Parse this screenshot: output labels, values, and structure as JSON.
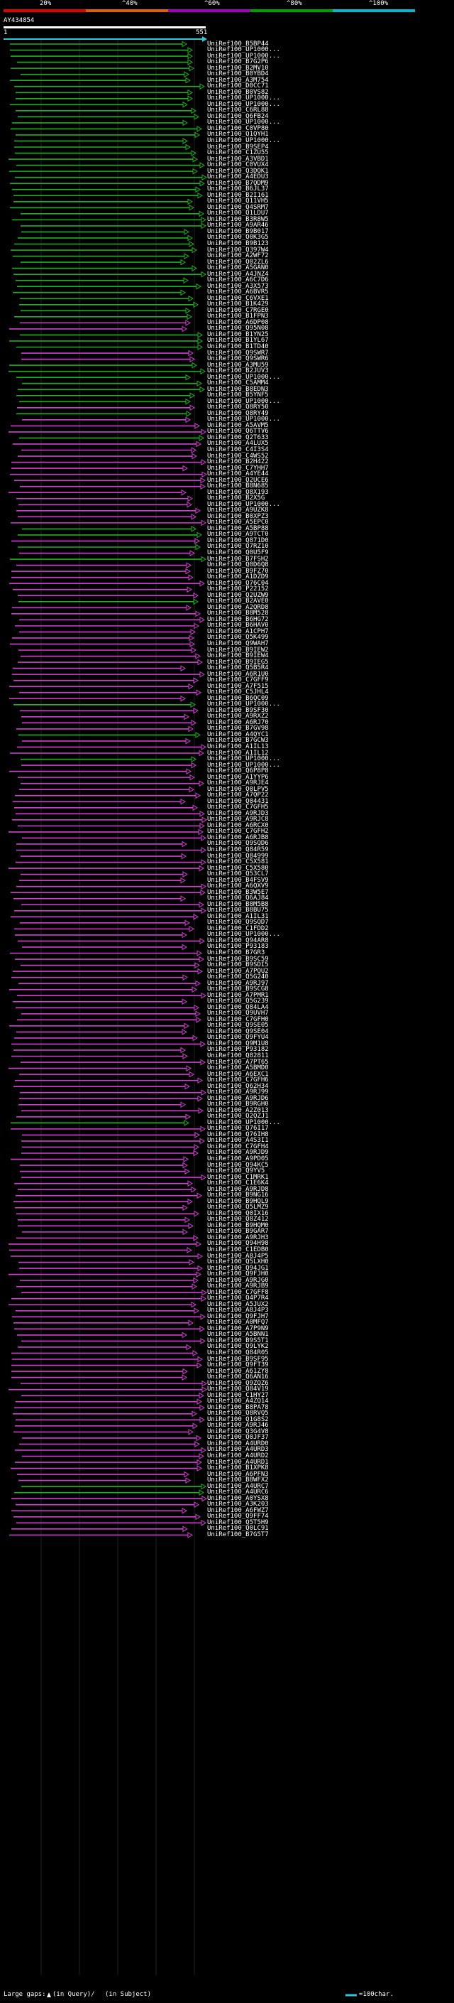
{
  "scale": {
    "labels": [
      "20%",
      "^40%",
      "^60%",
      "^80%",
      "^100%"
    ],
    "segment_colors": [
      "#e00000",
      "#e06000",
      "#a000c0",
      "#00a000",
      "#00b8d0"
    ]
  },
  "query": {
    "name": "AY434854",
    "start": "1",
    "end": "551"
  },
  "colors": {
    "green": "#20b020",
    "magenta": "#d040d0",
    "ruler": "#30c8d8"
  },
  "footer": {
    "large_gaps_label": "Large gaps:",
    "in_query_text": "(in Query)/",
    "in_subject_text": "(in Subject)",
    "legend_text": "=100char."
  },
  "hits": [
    {
      "id": "UniRef100_B5BP44",
      "color": "green"
    },
    {
      "id": "UniRef100_UP1000...",
      "color": "green"
    },
    {
      "id": "UniRef100_UP1000...",
      "color": "green"
    },
    {
      "id": "UniRef100_B7G2P6",
      "color": "green"
    },
    {
      "id": "UniRef100_B2MV10",
      "color": "green"
    },
    {
      "id": "UniRef100_B0YBD4",
      "color": "green"
    },
    {
      "id": "UniRef100_A3M754",
      "color": "green"
    },
    {
      "id": "UniRef100_D0CC71",
      "color": "green"
    },
    {
      "id": "UniRef100_B0VS82",
      "color": "green"
    },
    {
      "id": "UniRef100_UP1000...",
      "color": "green"
    },
    {
      "id": "UniRef100_UP1000...",
      "color": "green"
    },
    {
      "id": "UniRef100_C6RL88",
      "color": "green"
    },
    {
      "id": "UniRef100_Q6FB24",
      "color": "green"
    },
    {
      "id": "UniRef100_UP1000...",
      "color": "green"
    },
    {
      "id": "UniRef100_C0VP80",
      "color": "green"
    },
    {
      "id": "UniRef100_Q1QYH1",
      "color": "green"
    },
    {
      "id": "UniRef100_UP1000...",
      "color": "green"
    },
    {
      "id": "UniRef100_B9SEP4",
      "color": "green"
    },
    {
      "id": "UniRef100_C1ZU55",
      "color": "green"
    },
    {
      "id": "UniRef100_A3VBD1",
      "color": "green"
    },
    {
      "id": "UniRef100_C0VUX4",
      "color": "green"
    },
    {
      "id": "UniRef100_Q3DQK1",
      "color": "green"
    },
    {
      "id": "UniRef100_A4EDU3",
      "color": "green"
    },
    {
      "id": "UniRef100_B7QDM9",
      "color": "green"
    },
    {
      "id": "UniRef100_B6JL37",
      "color": "green"
    },
    {
      "id": "UniRef100_B2I161",
      "color": "green"
    },
    {
      "id": "UniRef100_Q11VH5",
      "color": "green"
    },
    {
      "id": "UniRef100_Q4SRM7",
      "color": "green"
    },
    {
      "id": "UniRef100_Q1LDU7",
      "color": "green"
    },
    {
      "id": "UniRef100_B3R8W5",
      "color": "green"
    },
    {
      "id": "UniRef100_A9AR46",
      "color": "green"
    },
    {
      "id": "UniRef100_B9B017",
      "color": "green"
    },
    {
      "id": "UniRef100_Q0K3G5",
      "color": "green"
    },
    {
      "id": "UniRef100_B9B123",
      "color": "green"
    },
    {
      "id": "UniRef100_Q397W4",
      "color": "green"
    },
    {
      "id": "UniRef100_A2WF72",
      "color": "green"
    },
    {
      "id": "UniRef100_Q02ZL6",
      "color": "green"
    },
    {
      "id": "UniRef100_A5GAN0",
      "color": "green"
    },
    {
      "id": "UniRef100_A4JNZ4",
      "color": "green"
    },
    {
      "id": "UniRef100_A6C7D6",
      "color": "green"
    },
    {
      "id": "UniRef100_A3X573",
      "color": "green"
    },
    {
      "id": "UniRef100_A6BVR5",
      "color": "green"
    },
    {
      "id": "UniRef100_C6VXE1",
      "color": "green"
    },
    {
      "id": "UniRef100_B1K429",
      "color": "green"
    },
    {
      "id": "UniRef100_C7RGE0",
      "color": "green"
    },
    {
      "id": "UniRef100_B1FPN3",
      "color": "green"
    },
    {
      "id": "UniRef100_A6DP08",
      "color": "magenta"
    },
    {
      "id": "UniRef100_Q95N08",
      "color": "magenta"
    },
    {
      "id": "UniRef100_B1YN25",
      "color": "green"
    },
    {
      "id": "UniRef100_B1YL67",
      "color": "green"
    },
    {
      "id": "UniRef100_B1TD40",
      "color": "green"
    },
    {
      "id": "UniRef100_Q9SWR7",
      "color": "magenta"
    },
    {
      "id": "UniRef100_Q9SWR6",
      "color": "magenta"
    },
    {
      "id": "UniRef100_A3MU59",
      "color": "green"
    },
    {
      "id": "UniRef100_B2JUV3",
      "color": "green"
    },
    {
      "id": "UniRef100_UP1000...",
      "color": "green"
    },
    {
      "id": "UniRef100_C5AMM4",
      "color": "green"
    },
    {
      "id": "UniRef100_B8EDN3",
      "color": "green"
    },
    {
      "id": "UniRef100_B5YNF5",
      "color": "green"
    },
    {
      "id": "UniRef100_UP1000...",
      "color": "green"
    },
    {
      "id": "UniRef100_Q8RY50",
      "color": "magenta"
    },
    {
      "id": "UniRef100_Q8RY49",
      "color": "green"
    },
    {
      "id": "UniRef100_UP1000...",
      "color": "magenta"
    },
    {
      "id": "UniRef100_A5AVM5",
      "color": "magenta"
    },
    {
      "id": "UniRef100_Q6TTV6",
      "color": "magenta"
    },
    {
      "id": "UniRef100_Q2T633",
      "color": "green"
    },
    {
      "id": "UniRef100_A4LUX5",
      "color": "magenta"
    },
    {
      "id": "UniRef100_C4I3S4",
      "color": "magenta"
    },
    {
      "id": "UniRef100_C4WS52",
      "color": "magenta"
    },
    {
      "id": "UniRef100_B2H422",
      "color": "magenta"
    },
    {
      "id": "UniRef100_C7YHH7",
      "color": "magenta"
    },
    {
      "id": "UniRef100_A4YE44",
      "color": "magenta"
    },
    {
      "id": "UniRef100_Q2UCE6",
      "color": "magenta"
    },
    {
      "id": "UniRef100_B8N685",
      "color": "magenta"
    },
    {
      "id": "UniRef100_Q8X193",
      "color": "magenta"
    },
    {
      "id": "UniRef100_B2X5G",
      "color": "magenta"
    },
    {
      "id": "UniRef100_UP1000...",
      "color": "magenta"
    },
    {
      "id": "UniRef100_A9UZK8",
      "color": "magenta"
    },
    {
      "id": "UniRef100_B0XPZ3",
      "color": "magenta"
    },
    {
      "id": "UniRef100_A5EPC0",
      "color": "magenta"
    },
    {
      "id": "UniRef100_A5BP88",
      "color": "green"
    },
    {
      "id": "UniRef100_A9TCT0",
      "color": "green"
    },
    {
      "id": "UniRef100_Q871D0",
      "color": "magenta"
    },
    {
      "id": "UniRef100_Q7RZ10",
      "color": "green"
    },
    {
      "id": "UniRef100_Q0U5F9",
      "color": "magenta"
    },
    {
      "id": "UniRef100_B7FSH2",
      "color": "green"
    },
    {
      "id": "UniRef100_Q0D6Q8",
      "color": "magenta"
    },
    {
      "id": "UniRef100_B9FZ70",
      "color": "magenta"
    },
    {
      "id": "UniRef100_A1DZD9",
      "color": "magenta"
    },
    {
      "id": "UniRef100_Q76C04",
      "color": "magenta"
    },
    {
      "id": "UniRef100_P22152",
      "color": "magenta"
    },
    {
      "id": "UniRef100_Q2UZW9",
      "color": "magenta"
    },
    {
      "id": "UniRef100_B2AVE0",
      "color": "green"
    },
    {
      "id": "UniRef100_A2QRD8",
      "color": "magenta"
    },
    {
      "id": "UniRef100_B8M528",
      "color": "magenta"
    },
    {
      "id": "UniRef100_B6HG72",
      "color": "magenta"
    },
    {
      "id": "UniRef100_B6HAV0",
      "color": "magenta"
    },
    {
      "id": "UniRef100_A1CPH7",
      "color": "magenta"
    },
    {
      "id": "UniRef100_Q5K499",
      "color": "magenta"
    },
    {
      "id": "UniRef100_Q9WAH7",
      "color": "magenta"
    },
    {
      "id": "UniRef100_B9IEW2",
      "color": "magenta"
    },
    {
      "id": "UniRef100_B9IEW4",
      "color": "magenta"
    },
    {
      "id": "UniRef100_B9IEG5",
      "color": "magenta"
    },
    {
      "id": "UniRef100_Q5B5R4",
      "color": "magenta"
    },
    {
      "id": "UniRef100_A6R1U0",
      "color": "magenta"
    },
    {
      "id": "UniRef100_C7GFF9",
      "color": "magenta"
    },
    {
      "id": "UniRef100_A7F515",
      "color": "magenta"
    },
    {
      "id": "UniRef100_C5JHL4",
      "color": "magenta"
    },
    {
      "id": "UniRef100_B6QC09",
      "color": "magenta"
    },
    {
      "id": "UniRef100_UP1000...",
      "color": "green"
    },
    {
      "id": "UniRef100_B9SF30",
      "color": "magenta"
    },
    {
      "id": "UniRef100_A9RXZ2",
      "color": "magenta"
    },
    {
      "id": "UniRef100_A6RJ70",
      "color": "magenta"
    },
    {
      "id": "UniRef100_B7GV98",
      "color": "magenta"
    },
    {
      "id": "UniRef100_A4QYC1",
      "color": "green"
    },
    {
      "id": "UniRef100_B7GCW3",
      "color": "magenta"
    },
    {
      "id": "UniRef100_A1IL13",
      "color": "magenta"
    },
    {
      "id": "UniRef100_A1IL12",
      "color": "magenta"
    },
    {
      "id": "UniRef100_UP1000...",
      "color": "green"
    },
    {
      "id": "UniRef100_UP1000...",
      "color": "magenta"
    },
    {
      "id": "UniRef100_Q6P8P8",
      "color": "magenta"
    },
    {
      "id": "UniRef100_A1YYP6",
      "color": "magenta"
    },
    {
      "id": "UniRef100_A9RJE4",
      "color": "magenta"
    },
    {
      "id": "UniRef100_Q0LPV5",
      "color": "magenta"
    },
    {
      "id": "UniRef100_A7QP22",
      "color": "magenta"
    },
    {
      "id": "UniRef100_Q04431",
      "color": "magenta"
    },
    {
      "id": "UniRef100_C7GFH5",
      "color": "magenta"
    },
    {
      "id": "UniRef100_A9RJD3",
      "color": "magenta"
    },
    {
      "id": "UniRef100_A9RJC8",
      "color": "magenta"
    },
    {
      "id": "UniRef100_A6RCX0",
      "color": "magenta"
    },
    {
      "id": "UniRef100_C7GFH2",
      "color": "magenta"
    },
    {
      "id": "UniRef100_A6RJB8",
      "color": "magenta"
    },
    {
      "id": "UniRef100_Q9SQD6",
      "color": "magenta"
    },
    {
      "id": "UniRef100_Q84R59",
      "color": "magenta"
    },
    {
      "id": "UniRef100_Q84999",
      "color": "magenta"
    },
    {
      "id": "UniRef100_C5X581",
      "color": "magenta"
    },
    {
      "id": "UniRef100_C5X580",
      "color": "magenta"
    },
    {
      "id": "UniRef100_Q53CL7",
      "color": "magenta"
    },
    {
      "id": "UniRef100_B4FSV9",
      "color": "magenta"
    },
    {
      "id": "UniRef100_A6QXV9",
      "color": "magenta"
    },
    {
      "id": "UniRef100_B3W5E7",
      "color": "magenta"
    },
    {
      "id": "UniRef100_Q6AJ84",
      "color": "magenta"
    },
    {
      "id": "UniRef100_B8M5B8",
      "color": "magenta"
    },
    {
      "id": "UniRef100_B8BU75",
      "color": "magenta"
    },
    {
      "id": "UniRef100_A1IL31",
      "color": "magenta"
    },
    {
      "id": "UniRef100_Q9SQD7",
      "color": "magenta"
    },
    {
      "id": "UniRef100_C1FDD2",
      "color": "magenta"
    },
    {
      "id": "UniRef100_UP1000...",
      "color": "magenta"
    },
    {
      "id": "UniRef100_Q94AR8",
      "color": "magenta"
    },
    {
      "id": "UniRef100_P93183",
      "color": "magenta"
    },
    {
      "id": "UniRef100_B7GR3",
      "color": "magenta"
    },
    {
      "id": "UniRef100_B9SC59",
      "color": "magenta"
    },
    {
      "id": "UniRef100_B9SDI5",
      "color": "magenta"
    },
    {
      "id": "UniRef100_A7PQU2",
      "color": "magenta"
    },
    {
      "id": "UniRef100_Q5G240",
      "color": "magenta"
    },
    {
      "id": "UniRef100_A9RJ97",
      "color": "magenta"
    },
    {
      "id": "UniRef100_B9SCG8",
      "color": "magenta"
    },
    {
      "id": "UniRef100_A7PMR1",
      "color": "magenta"
    },
    {
      "id": "UniRef100_Q5G239",
      "color": "magenta"
    },
    {
      "id": "UniRef100_Q84LA4",
      "color": "magenta"
    },
    {
      "id": "UniRef100_Q9UVH7",
      "color": "magenta"
    },
    {
      "id": "UniRef100_C7GFH0",
      "color": "magenta"
    },
    {
      "id": "UniRef100_Q9SE05",
      "color": "magenta"
    },
    {
      "id": "UniRef100_Q9SE04",
      "color": "magenta"
    },
    {
      "id": "UniRef100_Q9FYU4",
      "color": "magenta"
    },
    {
      "id": "UniRef100_Q9M1U8",
      "color": "magenta"
    },
    {
      "id": "UniRef100_P93182",
      "color": "magenta"
    },
    {
      "id": "UniRef100_Q82811",
      "color": "magenta"
    },
    {
      "id": "UniRef100_A7PT65",
      "color": "magenta"
    },
    {
      "id": "UniRef100_A5BMD0",
      "color": "magenta"
    },
    {
      "id": "UniRef100_A6EXC1",
      "color": "magenta"
    },
    {
      "id": "UniRef100_C7GFH6",
      "color": "magenta"
    },
    {
      "id": "UniRef100_Q62H34",
      "color": "magenta"
    },
    {
      "id": "UniRef100_A9RJ99",
      "color": "magenta"
    },
    {
      "id": "UniRef100_A9RJD6",
      "color": "magenta"
    },
    {
      "id": "UniRef100_B9RGH0",
      "color": "magenta"
    },
    {
      "id": "UniRef100_A2Z013",
      "color": "magenta"
    },
    {
      "id": "UniRef100_Q2QZJ1",
      "color": "magenta"
    },
    {
      "id": "UniRef100_UP1000...",
      "color": "green"
    },
    {
      "id": "UniRef100_Q76I17",
      "color": "magenta"
    },
    {
      "id": "UniRef100_Q76IH8",
      "color": "magenta"
    },
    {
      "id": "UniRef100_A4S3I1",
      "color": "magenta"
    },
    {
      "id": "UniRef100_C7GFH4",
      "color": "magenta"
    },
    {
      "id": "UniRef100_A9RJD9",
      "color": "magenta"
    },
    {
      "id": "UniRef100_A9PD05",
      "color": "magenta"
    },
    {
      "id": "UniRef100_Q94KC5",
      "color": "magenta"
    },
    {
      "id": "UniRef100_Q9YV5",
      "color": "magenta"
    },
    {
      "id": "UniRef100_C1MRK1",
      "color": "magenta"
    },
    {
      "id": "UniRef100_C1E6K4",
      "color": "magenta"
    },
    {
      "id": "UniRef100_A9RJD8",
      "color": "magenta"
    },
    {
      "id": "UniRef100_B9NG16",
      "color": "magenta"
    },
    {
      "id": "UniRef100_B9HQL9",
      "color": "magenta"
    },
    {
      "id": "UniRef100_Q5LMZ9",
      "color": "magenta"
    },
    {
      "id": "UniRef100_Q0IX16",
      "color": "magenta"
    },
    {
      "id": "UniRef100_Q8Z412",
      "color": "magenta"
    },
    {
      "id": "UniRef100_B9HQM0",
      "color": "magenta"
    },
    {
      "id": "UniRef100_B9GAR7",
      "color": "magenta"
    },
    {
      "id": "UniRef100_A9RJH3",
      "color": "magenta"
    },
    {
      "id": "UniRef100_Q94H98",
      "color": "magenta"
    },
    {
      "id": "UniRef100_C1EDB0",
      "color": "magenta"
    },
    {
      "id": "UniRef100_A8J4P5",
      "color": "magenta"
    },
    {
      "id": "UniRef100_Q5LXH0",
      "color": "magenta"
    },
    {
      "id": "UniRef100_Q94JG1",
      "color": "magenta"
    },
    {
      "id": "UniRef100_Q9FJH0",
      "color": "magenta"
    },
    {
      "id": "UniRef100_A9RJG0",
      "color": "magenta"
    },
    {
      "id": "UniRef100_A9RJB9",
      "color": "magenta"
    },
    {
      "id": "UniRef100_C7GFF8",
      "color": "magenta"
    },
    {
      "id": "UniRef100_Q4P7R4",
      "color": "magenta"
    },
    {
      "id": "UniRef100_A5JUX2",
      "color": "magenta"
    },
    {
      "id": "UniRef100_A8J4P3",
      "color": "magenta"
    },
    {
      "id": "UniRef100_Q9FJH7",
      "color": "magenta"
    },
    {
      "id": "UniRef100_A0MFQ7",
      "color": "magenta"
    },
    {
      "id": "UniRef100_A7P9N9",
      "color": "magenta"
    },
    {
      "id": "UniRef100_A5BNN1",
      "color": "magenta"
    },
    {
      "id": "UniRef100_B9S5T1",
      "color": "magenta"
    },
    {
      "id": "UniRef100_Q9LYK2",
      "color": "magenta"
    },
    {
      "id": "UniRef100_Q84R05",
      "color": "magenta"
    },
    {
      "id": "UniRef100_B9SF95",
      "color": "magenta"
    },
    {
      "id": "UniRef100_Q9FT39",
      "color": "magenta"
    },
    {
      "id": "UniRef100_A61ZY8",
      "color": "magenta"
    },
    {
      "id": "UniRef100_Q6AN16",
      "color": "magenta"
    },
    {
      "id": "UniRef100_Q9ZQZ6",
      "color": "magenta"
    },
    {
      "id": "UniRef100_Q84V19",
      "color": "magenta"
    },
    {
      "id": "UniRef100_C1HY27",
      "color": "magenta"
    },
    {
      "id": "UniRef100_A4ZQ14",
      "color": "magenta"
    },
    {
      "id": "UniRef100_B8PA78",
      "color": "magenta"
    },
    {
      "id": "UniRef100_Q8RVQ5",
      "color": "magenta"
    },
    {
      "id": "UniRef100_Q1G8S2",
      "color": "magenta"
    },
    {
      "id": "UniRef100_A9RJ46",
      "color": "magenta"
    },
    {
      "id": "UniRef100_Q3G4V8",
      "color": "magenta"
    },
    {
      "id": "UniRef100_Q0JF37",
      "color": "magenta"
    },
    {
      "id": "UniRef100_A4URD0",
      "color": "magenta"
    },
    {
      "id": "UniRef100_A4URD3",
      "color": "magenta"
    },
    {
      "id": "UniRef100_A4URD2",
      "color": "magenta"
    },
    {
      "id": "UniRef100_A4URD1",
      "color": "magenta"
    },
    {
      "id": "UniRef100_B1XPK8",
      "color": "magenta"
    },
    {
      "id": "UniRef100_A6PFN3",
      "color": "magenta"
    },
    {
      "id": "UniRef100_B8WFX2",
      "color": "magenta"
    },
    {
      "id": "UniRef100_A4URC7",
      "color": "green"
    },
    {
      "id": "UniRef100_A4URC6",
      "color": "green"
    },
    {
      "id": "UniRef100_A0YSX8",
      "color": "magenta"
    },
    {
      "id": "UniRef100_A3K203",
      "color": "magenta"
    },
    {
      "id": "UniRef100_A6FWZ7",
      "color": "magenta"
    },
    {
      "id": "UniRef100_Q9FF74",
      "color": "magenta"
    },
    {
      "id": "UniRef100_Q5T5H9",
      "color": "magenta"
    },
    {
      "id": "UniRef100_Q0LC91",
      "color": "magenta"
    },
    {
      "id": "UniRef100_B7G5T7",
      "color": "magenta"
    }
  ]
}
